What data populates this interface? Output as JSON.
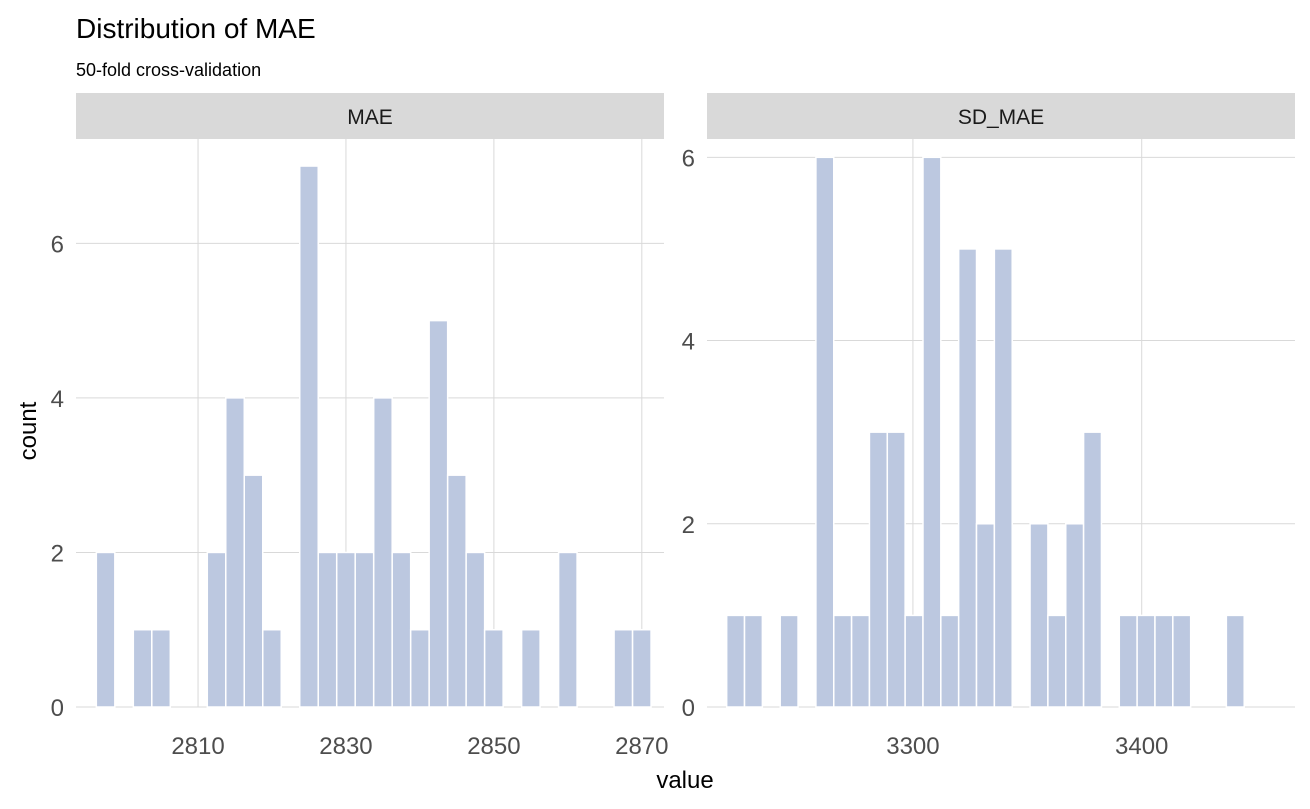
{
  "title": "Distribution of MAE",
  "subtitle": "50-fold cross-validation",
  "xlabel": "value",
  "ylabel": "count",
  "colors": {
    "bar": "#bcc8e0",
    "strip": "#d9d9d9",
    "grid": "#d9d9d9",
    "axis_text": "#4d4d4d"
  },
  "chart_data": [
    {
      "type": "bar",
      "panel": "MAE",
      "xlabel": "value",
      "ylabel": "count",
      "binwidth": 2.5,
      "xlim": [
        2793.5,
        2873
      ],
      "ylim": [
        0,
        7.35
      ],
      "x_ticks": [
        2810,
        2830,
        2850,
        2870
      ],
      "y_ticks": [
        0,
        2,
        4,
        6
      ],
      "x": [
        2797.5,
        2800,
        2802.5,
        2805,
        2807.5,
        2810,
        2812.5,
        2815,
        2817.5,
        2820,
        2822.5,
        2825,
        2827.5,
        2830,
        2832.5,
        2835,
        2837.5,
        2840,
        2842.5,
        2845,
        2847.5,
        2850,
        2852.5,
        2855,
        2857.5,
        2860,
        2862.5,
        2865,
        2867.5,
        2870
      ],
      "values": [
        2,
        0,
        1,
        1,
        0,
        0,
        2,
        4,
        3,
        1,
        0,
        7,
        2,
        2,
        2,
        4,
        2,
        1,
        5,
        3,
        2,
        1,
        0,
        1,
        0,
        2,
        0,
        0,
        1,
        1
      ]
    },
    {
      "type": "bar",
      "panel": "SD_MAE",
      "xlabel": "value",
      "ylabel": "count",
      "binwidth": 7.8,
      "xlim": [
        3210,
        3467
      ],
      "ylim": [
        0,
        6.2
      ],
      "x_ticks": [
        3300,
        3400
      ],
      "y_ticks": [
        0,
        2,
        4,
        6
      ],
      "x": [
        3222.5,
        3230.3,
        3238.1,
        3245.9,
        3253.7,
        3261.5,
        3269.3,
        3277.1,
        3284.9,
        3292.7,
        3300.5,
        3308.3,
        3316.1,
        3323.9,
        3331.7,
        3339.5,
        3347.3,
        3355.1,
        3362.9,
        3370.7,
        3378.5,
        3386.3,
        3394.1,
        3401.9,
        3409.7,
        3417.5,
        3425.3,
        3433.1,
        3440.9,
        3448.7
      ],
      "values": [
        1,
        1,
        0,
        1,
        0,
        6,
        1,
        1,
        3,
        3,
        1,
        6,
        1,
        5,
        2,
        5,
        0,
        2,
        1,
        2,
        3,
        0,
        1,
        1,
        1,
        1,
        0,
        0,
        1,
        0
      ]
    }
  ]
}
